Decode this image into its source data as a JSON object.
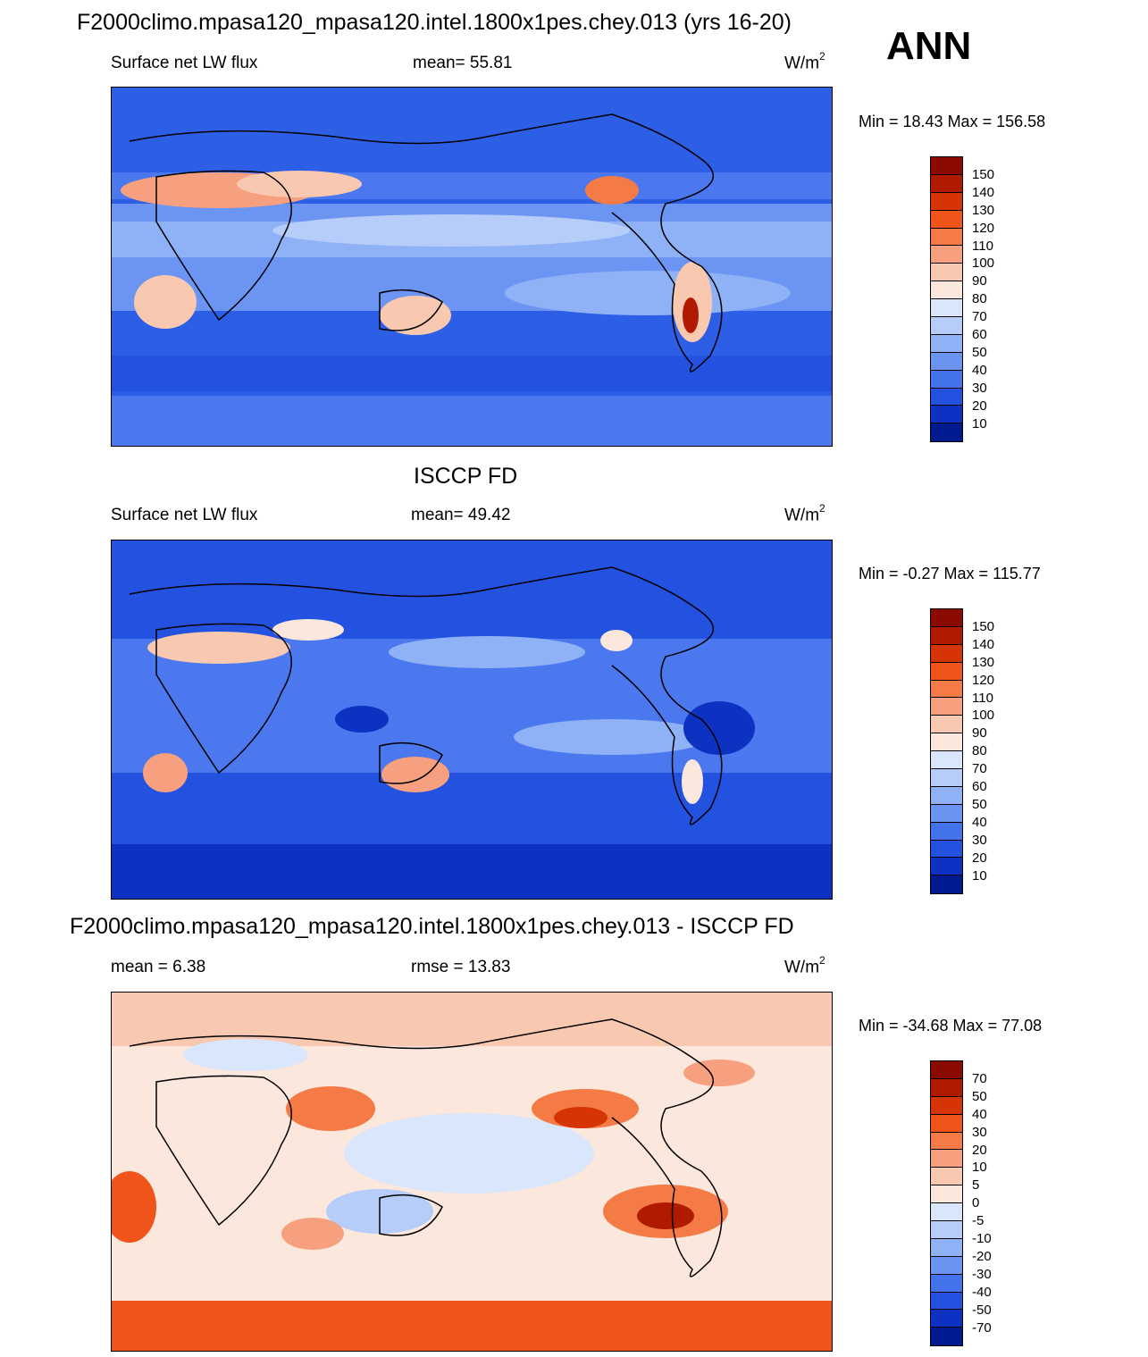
{
  "header": {
    "main_title": "F2000climo.mpasa120_mpasa120.intel.1800x1pes.chey.013 (yrs 16-20)",
    "season": "ANN"
  },
  "panels": [
    {
      "title": "",
      "left_label": "Surface net LW flux",
      "center_label": "mean=  55.81",
      "unit_base": "W/m",
      "unit_sup": "2",
      "minmax": "Min =  18.43 Max = 156.58",
      "colorbar_labels": [
        "150",
        "140",
        "130",
        "120",
        "110",
        "100",
        "90",
        "80",
        "70",
        "60",
        "50",
        "40",
        "30",
        "20",
        "10"
      ],
      "colorbar_colors": [
        "#8b0a00",
        "#b01b00",
        "#d53505",
        "#f0541a",
        "#f47a46",
        "#f6a080",
        "#f8c9b0",
        "#fbe7dc",
        "#d9e6fb",
        "#b6cdfa",
        "#8fb1f6",
        "#6a93f2",
        "#4472ec",
        "#2452e0",
        "#0d32c2",
        "#001a8f"
      ]
    },
    {
      "title": "ISCCP FD",
      "left_label": "Surface net LW flux",
      "center_label": "mean=  49.42",
      "unit_base": "W/m",
      "unit_sup": "2",
      "minmax": "Min =  -0.27 Max = 115.77",
      "colorbar_labels": [
        "150",
        "140",
        "130",
        "120",
        "110",
        "100",
        "90",
        "80",
        "70",
        "60",
        "50",
        "40",
        "30",
        "20",
        "10"
      ],
      "colorbar_colors": [
        "#8b0a00",
        "#b01b00",
        "#d53505",
        "#f0541a",
        "#f47a46",
        "#f6a080",
        "#f8c9b0",
        "#fbe7dc",
        "#d9e6fb",
        "#b6cdfa",
        "#8fb1f6",
        "#6a93f2",
        "#4472ec",
        "#2452e0",
        "#0d32c2",
        "#001a8f"
      ]
    },
    {
      "title": "F2000climo.mpasa120_mpasa120.intel.1800x1pes.chey.013 - ISCCP FD",
      "left_label": "mean =   6.38",
      "center_label": "rmse =  13.83",
      "unit_base": "W/m",
      "unit_sup": "2",
      "minmax": "Min = -34.68 Max =  77.08",
      "colorbar_labels": [
        "70",
        "50",
        "40",
        "30",
        "20",
        "10",
        "5",
        "0",
        "-5",
        "-10",
        "-20",
        "-30",
        "-40",
        "-50",
        "-70"
      ],
      "colorbar_colors": [
        "#8b0a00",
        "#b01b00",
        "#d53505",
        "#f0541a",
        "#f47a46",
        "#f6a080",
        "#f8c9b0",
        "#fbe7dc",
        "#d9e6fb",
        "#b6cdfa",
        "#8fb1f6",
        "#6a93f2",
        "#4472ec",
        "#2452e0",
        "#0d32c2",
        "#001a8f"
      ]
    }
  ]
}
